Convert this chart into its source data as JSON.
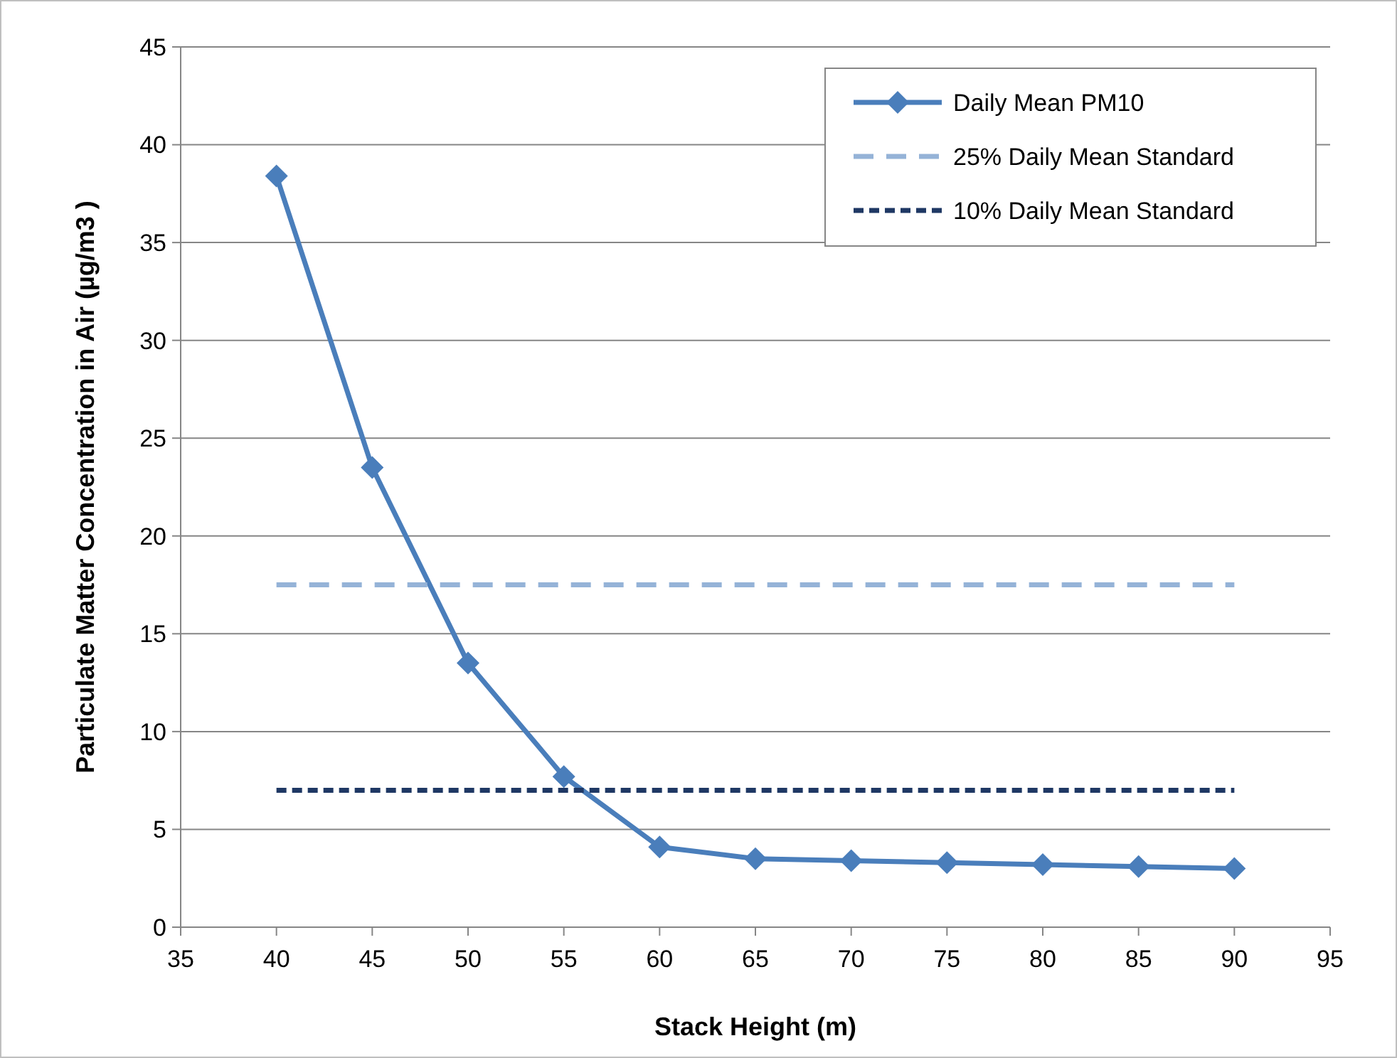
{
  "chart_data": {
    "type": "line",
    "xlabel": "Stack Height (m)",
    "ylabel": "Particulate Matter Concentration in Air (µg/m3 )",
    "xlim": [
      35,
      95
    ],
    "xticks": [
      35,
      40,
      45,
      50,
      55,
      60,
      65,
      70,
      75,
      80,
      85,
      90,
      95
    ],
    "ylim": [
      0,
      45
    ],
    "yticks": [
      0,
      5,
      10,
      15,
      20,
      25,
      30,
      35,
      40,
      45
    ],
    "grid": "y",
    "legend": "top right",
    "series": [
      {
        "name": "Daily Mean PM10",
        "color": "#4a7ebb",
        "marker": "diamond",
        "line_style": "solid",
        "x": [
          40,
          45,
          50,
          55,
          60,
          65,
          70,
          75,
          80,
          85,
          90
        ],
        "values": [
          38.4,
          23.5,
          13.5,
          7.7,
          4.1,
          3.5,
          3.4,
          3.3,
          3.2,
          3.1,
          3.0
        ]
      },
      {
        "name": "25% Daily Mean Standard",
        "color": "#95b3d7",
        "marker": "none",
        "line_style": "dashed",
        "x": [
          40,
          90
        ],
        "values": [
          17.5,
          17.5
        ]
      },
      {
        "name": "10% Daily Mean Standard",
        "color": "#1f3864",
        "marker": "none",
        "line_style": "dotted",
        "x": [
          40,
          90
        ],
        "values": [
          7,
          7
        ]
      }
    ]
  }
}
